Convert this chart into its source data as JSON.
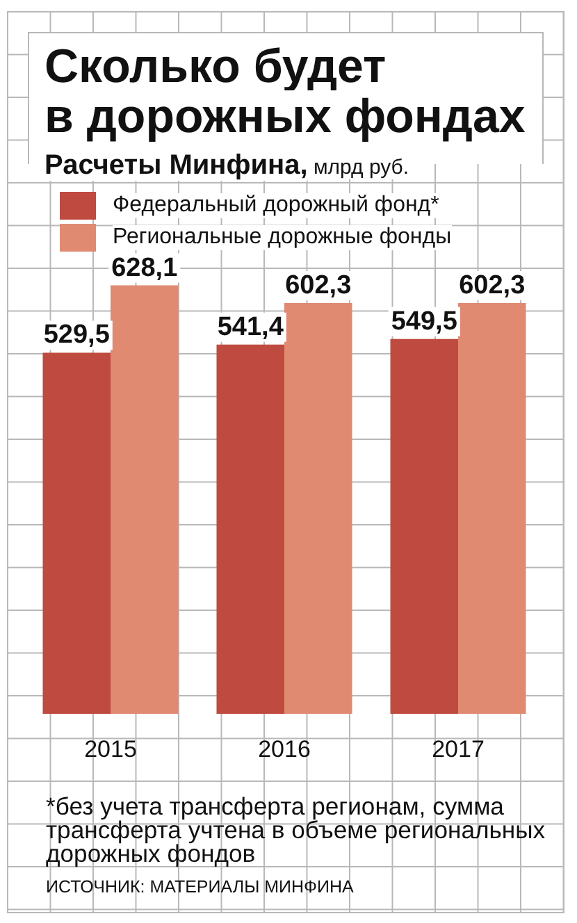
{
  "chart_data": {
    "type": "bar",
    "title": "Сколько будет в дорожных фондах",
    "subtitle": "Расчеты Минфина, млрд руб.",
    "categories": [
      "2015",
      "2016",
      "2017"
    ],
    "series": [
      {
        "name": "Федеральный дорожный фонд*",
        "color": "#bf4a3f",
        "values": [
          529.5,
          541.4,
          549.5
        ],
        "value_labels": [
          "529,5",
          "541,4",
          "549,5"
        ]
      },
      {
        "name": "Региональные дорожные фонды",
        "color": "#e08a72",
        "values": [
          628.1,
          602.3,
          602.3
        ],
        "value_labels": [
          "628,1",
          "602,3",
          "602,3"
        ]
      }
    ],
    "tick_labels": "x",
    "legend": "top left",
    "annotations": [
      "*без учета трансферта регионам, сумма трансферта учтена в объеме региональных дорожных фондов",
      "ИСТОЧНИК: МАТЕРИАЛЫ МИНФИНА"
    ]
  }
}
